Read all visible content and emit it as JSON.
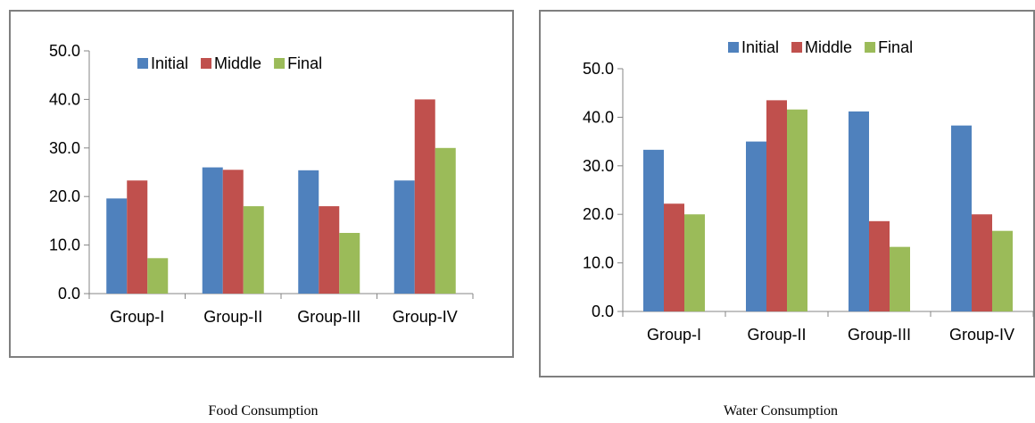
{
  "series_colors": {
    "Initial": "#4f81bd",
    "Middle": "#c0504d",
    "Final": "#9bbb59"
  },
  "chart_data": [
    {
      "type": "bar",
      "title": "Food Consumption",
      "categories": [
        "Group-I",
        "Group-II",
        "Group-III",
        "Group-IV"
      ],
      "series": [
        {
          "name": "Initial",
          "values": [
            19.6,
            26.0,
            25.4,
            23.3
          ]
        },
        {
          "name": "Middle",
          "values": [
            23.3,
            25.5,
            18.0,
            40.0
          ]
        },
        {
          "name": "Final",
          "values": [
            7.3,
            18.0,
            12.5,
            30.0
          ]
        }
      ],
      "ylim": [
        0,
        50
      ],
      "yticks": [
        "0.0",
        "10.0",
        "20.0",
        "30.0",
        "40.0",
        "50.0"
      ],
      "legend": "top",
      "grid": false
    },
    {
      "type": "bar",
      "title": "Water Consumption",
      "categories": [
        "Group-I",
        "Group-II",
        "Group-III",
        "Group-IV"
      ],
      "series": [
        {
          "name": "Initial",
          "values": [
            33.3,
            35.0,
            41.2,
            38.3
          ]
        },
        {
          "name": "Middle",
          "values": [
            22.2,
            43.5,
            18.6,
            20.0
          ]
        },
        {
          "name": "Final",
          "values": [
            20.0,
            41.6,
            13.3,
            16.6
          ]
        }
      ],
      "ylim": [
        0,
        50
      ],
      "yticks": [
        "0.0",
        "10.0",
        "20.0",
        "30.0",
        "40.0",
        "50.0"
      ],
      "legend": "top",
      "grid": false
    }
  ]
}
